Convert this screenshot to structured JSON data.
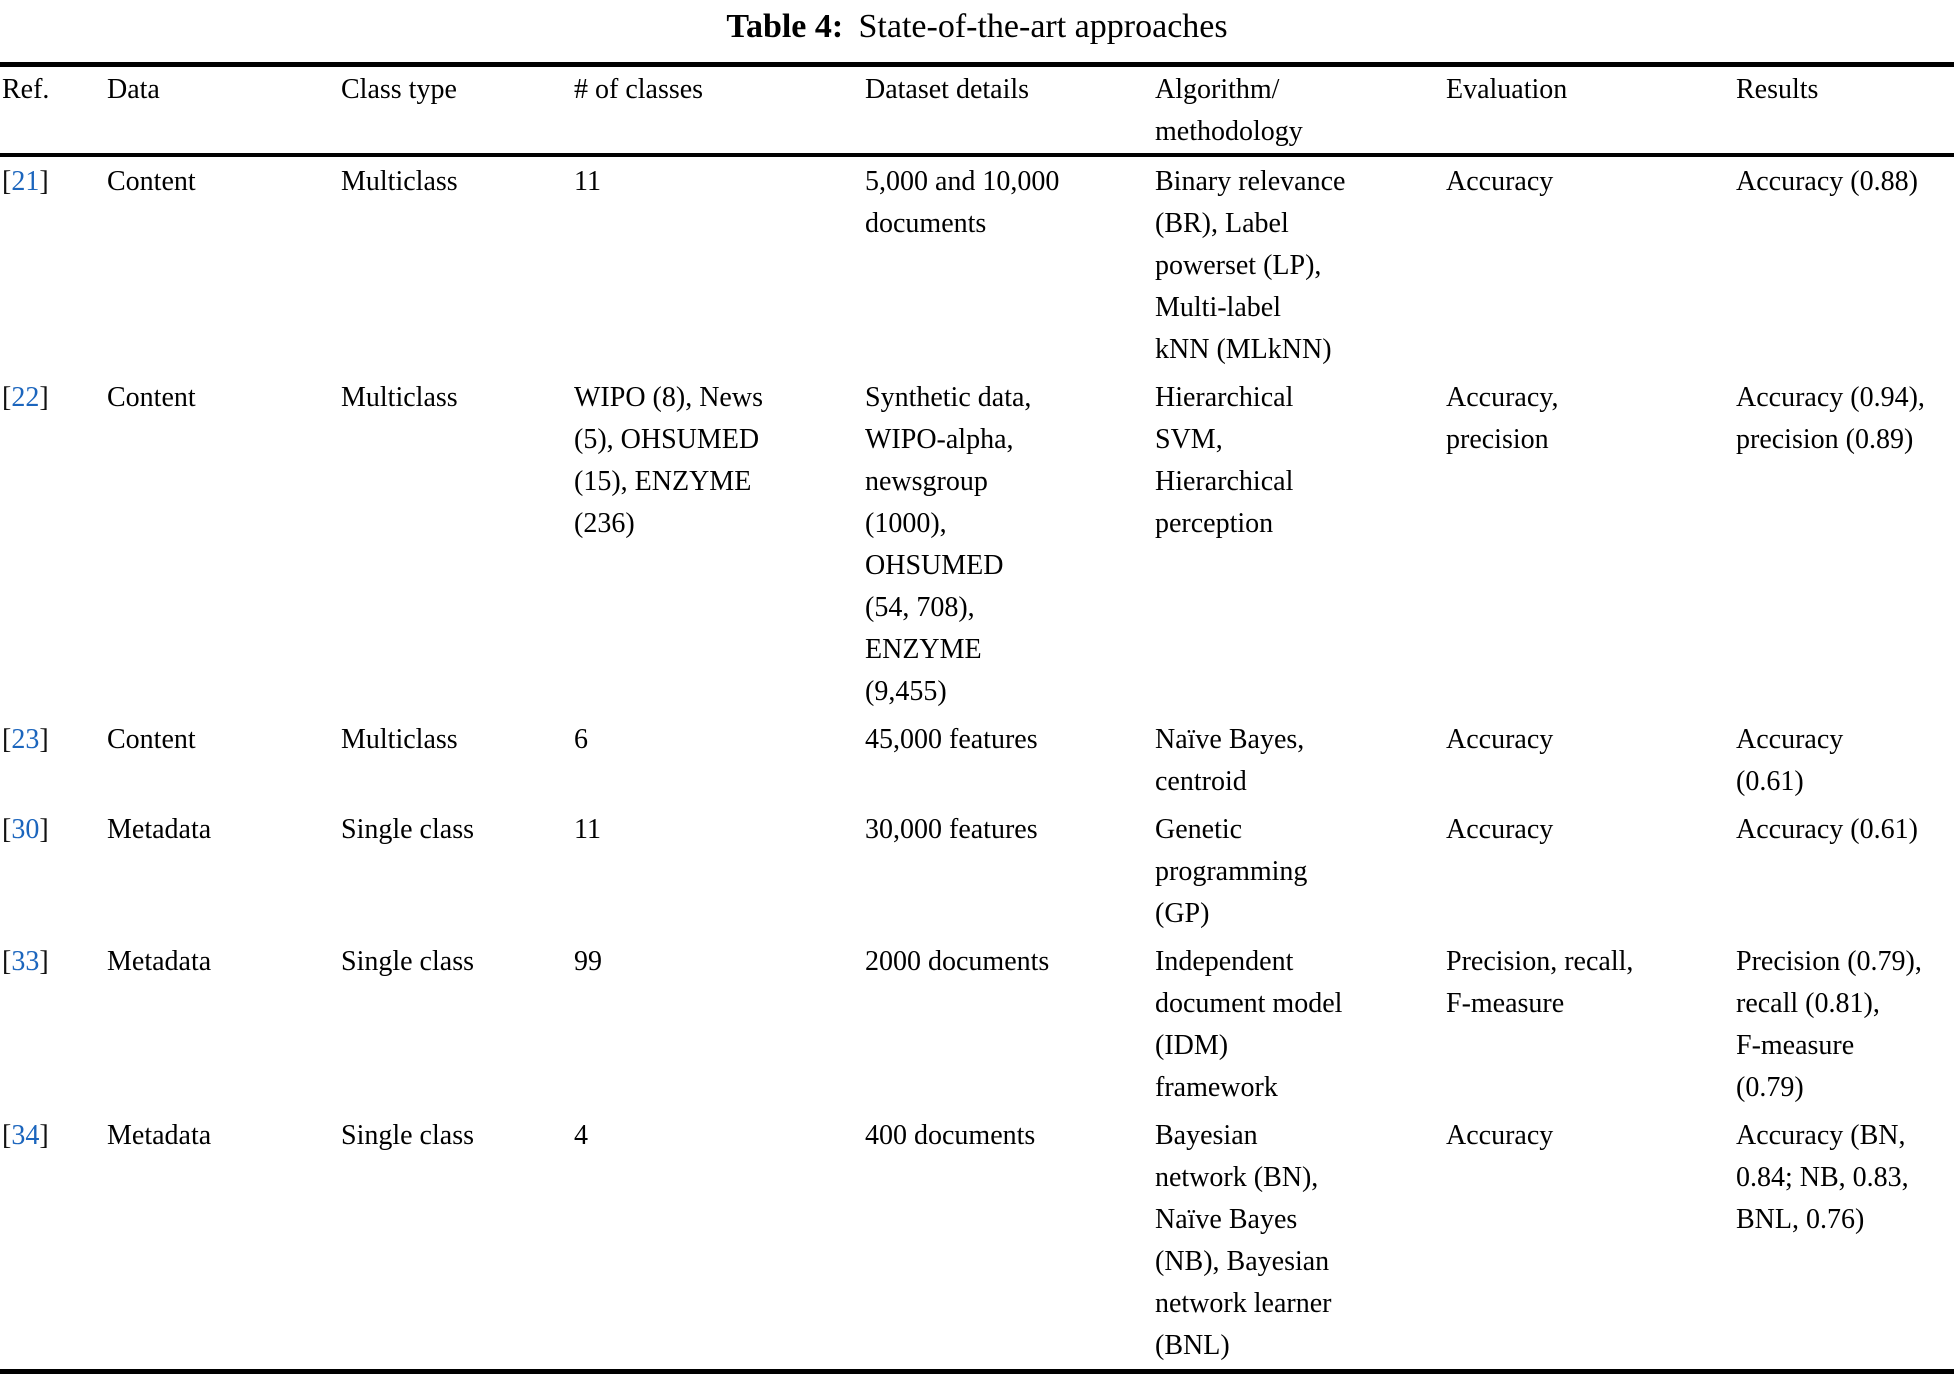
{
  "page": {
    "background_color": "#ffffff",
    "text_color": "#000000",
    "ref_link_color": "#1b65bd"
  },
  "title": {
    "label": "Table 4:",
    "text": "State-of-the-art approaches"
  },
  "table": {
    "ref_bracket_open": "[",
    "ref_bracket_close": "]",
    "columns": {
      "ref": "Ref.",
      "data": "Data",
      "class_type": "Class type",
      "num_classes": "# of classes",
      "dataset_details": "Dataset details",
      "algorithm": "Algorithm/\nmethodology",
      "evaluation": "Evaluation",
      "results": "Results"
    },
    "rows": [
      {
        "ref": "21",
        "data": "Content",
        "class_type": "Multiclass",
        "num_classes": "11",
        "dataset_details": "5,000 and 10,000\ndocuments",
        "algorithm": "Binary relevance\n(BR), Label\npowerset (LP),\nMulti-label\nkNN (MLkNN)",
        "evaluation": "Accuracy",
        "results": "Accuracy (0.88)"
      },
      {
        "ref": "22",
        "data": "Content",
        "class_type": "Multiclass",
        "num_classes": "WIPO (8), News\n(5), OHSUMED\n(15), ENZYME\n(236)",
        "dataset_details": "Synthetic data,\nWIPO-alpha,\nnewsgroup\n(1000),\nOHSUMED\n(54, 708),\nENZYME\n(9,455)",
        "algorithm": "Hierarchical\nSVM,\nHierarchical\nperception",
        "evaluation": "Accuracy,\nprecision",
        "results": "Accuracy (0.94),\nprecision (0.89)"
      },
      {
        "ref": "23",
        "data": "Content",
        "class_type": "Multiclass",
        "num_classes": "6",
        "dataset_details": "45,000 features",
        "algorithm": "Naïve Bayes,\ncentroid",
        "evaluation": "Accuracy",
        "results": "Accuracy\n(0.61)"
      },
      {
        "ref": "30",
        "data": "Metadata",
        "class_type": "Single class",
        "num_classes": "11",
        "dataset_details": "30,000 features",
        "algorithm": "Genetic\nprogramming\n(GP)",
        "evaluation": "Accuracy",
        "results": "Accuracy (0.61)"
      },
      {
        "ref": "33",
        "data": "Metadata",
        "class_type": "Single class",
        "num_classes": "99",
        "dataset_details": "2000 documents",
        "algorithm": "Independent\ndocument model\n(IDM)\nframework",
        "evaluation": "Precision, recall,\nF-measure",
        "results": "Precision (0.79),\nrecall (0.81),\nF-measure\n(0.79)"
      },
      {
        "ref": "34",
        "data": "Metadata",
        "class_type": "Single class",
        "num_classes": "4",
        "dataset_details": "400 documents",
        "algorithm": "Bayesian\nnetwork (BN),\nNaïve Bayes\n(NB), Bayesian\nnetwork learner\n(BNL)",
        "evaluation": "Accuracy",
        "results": "Accuracy (BN,\n0.84; NB, 0.83,\nBNL, 0.76)"
      }
    ]
  }
}
